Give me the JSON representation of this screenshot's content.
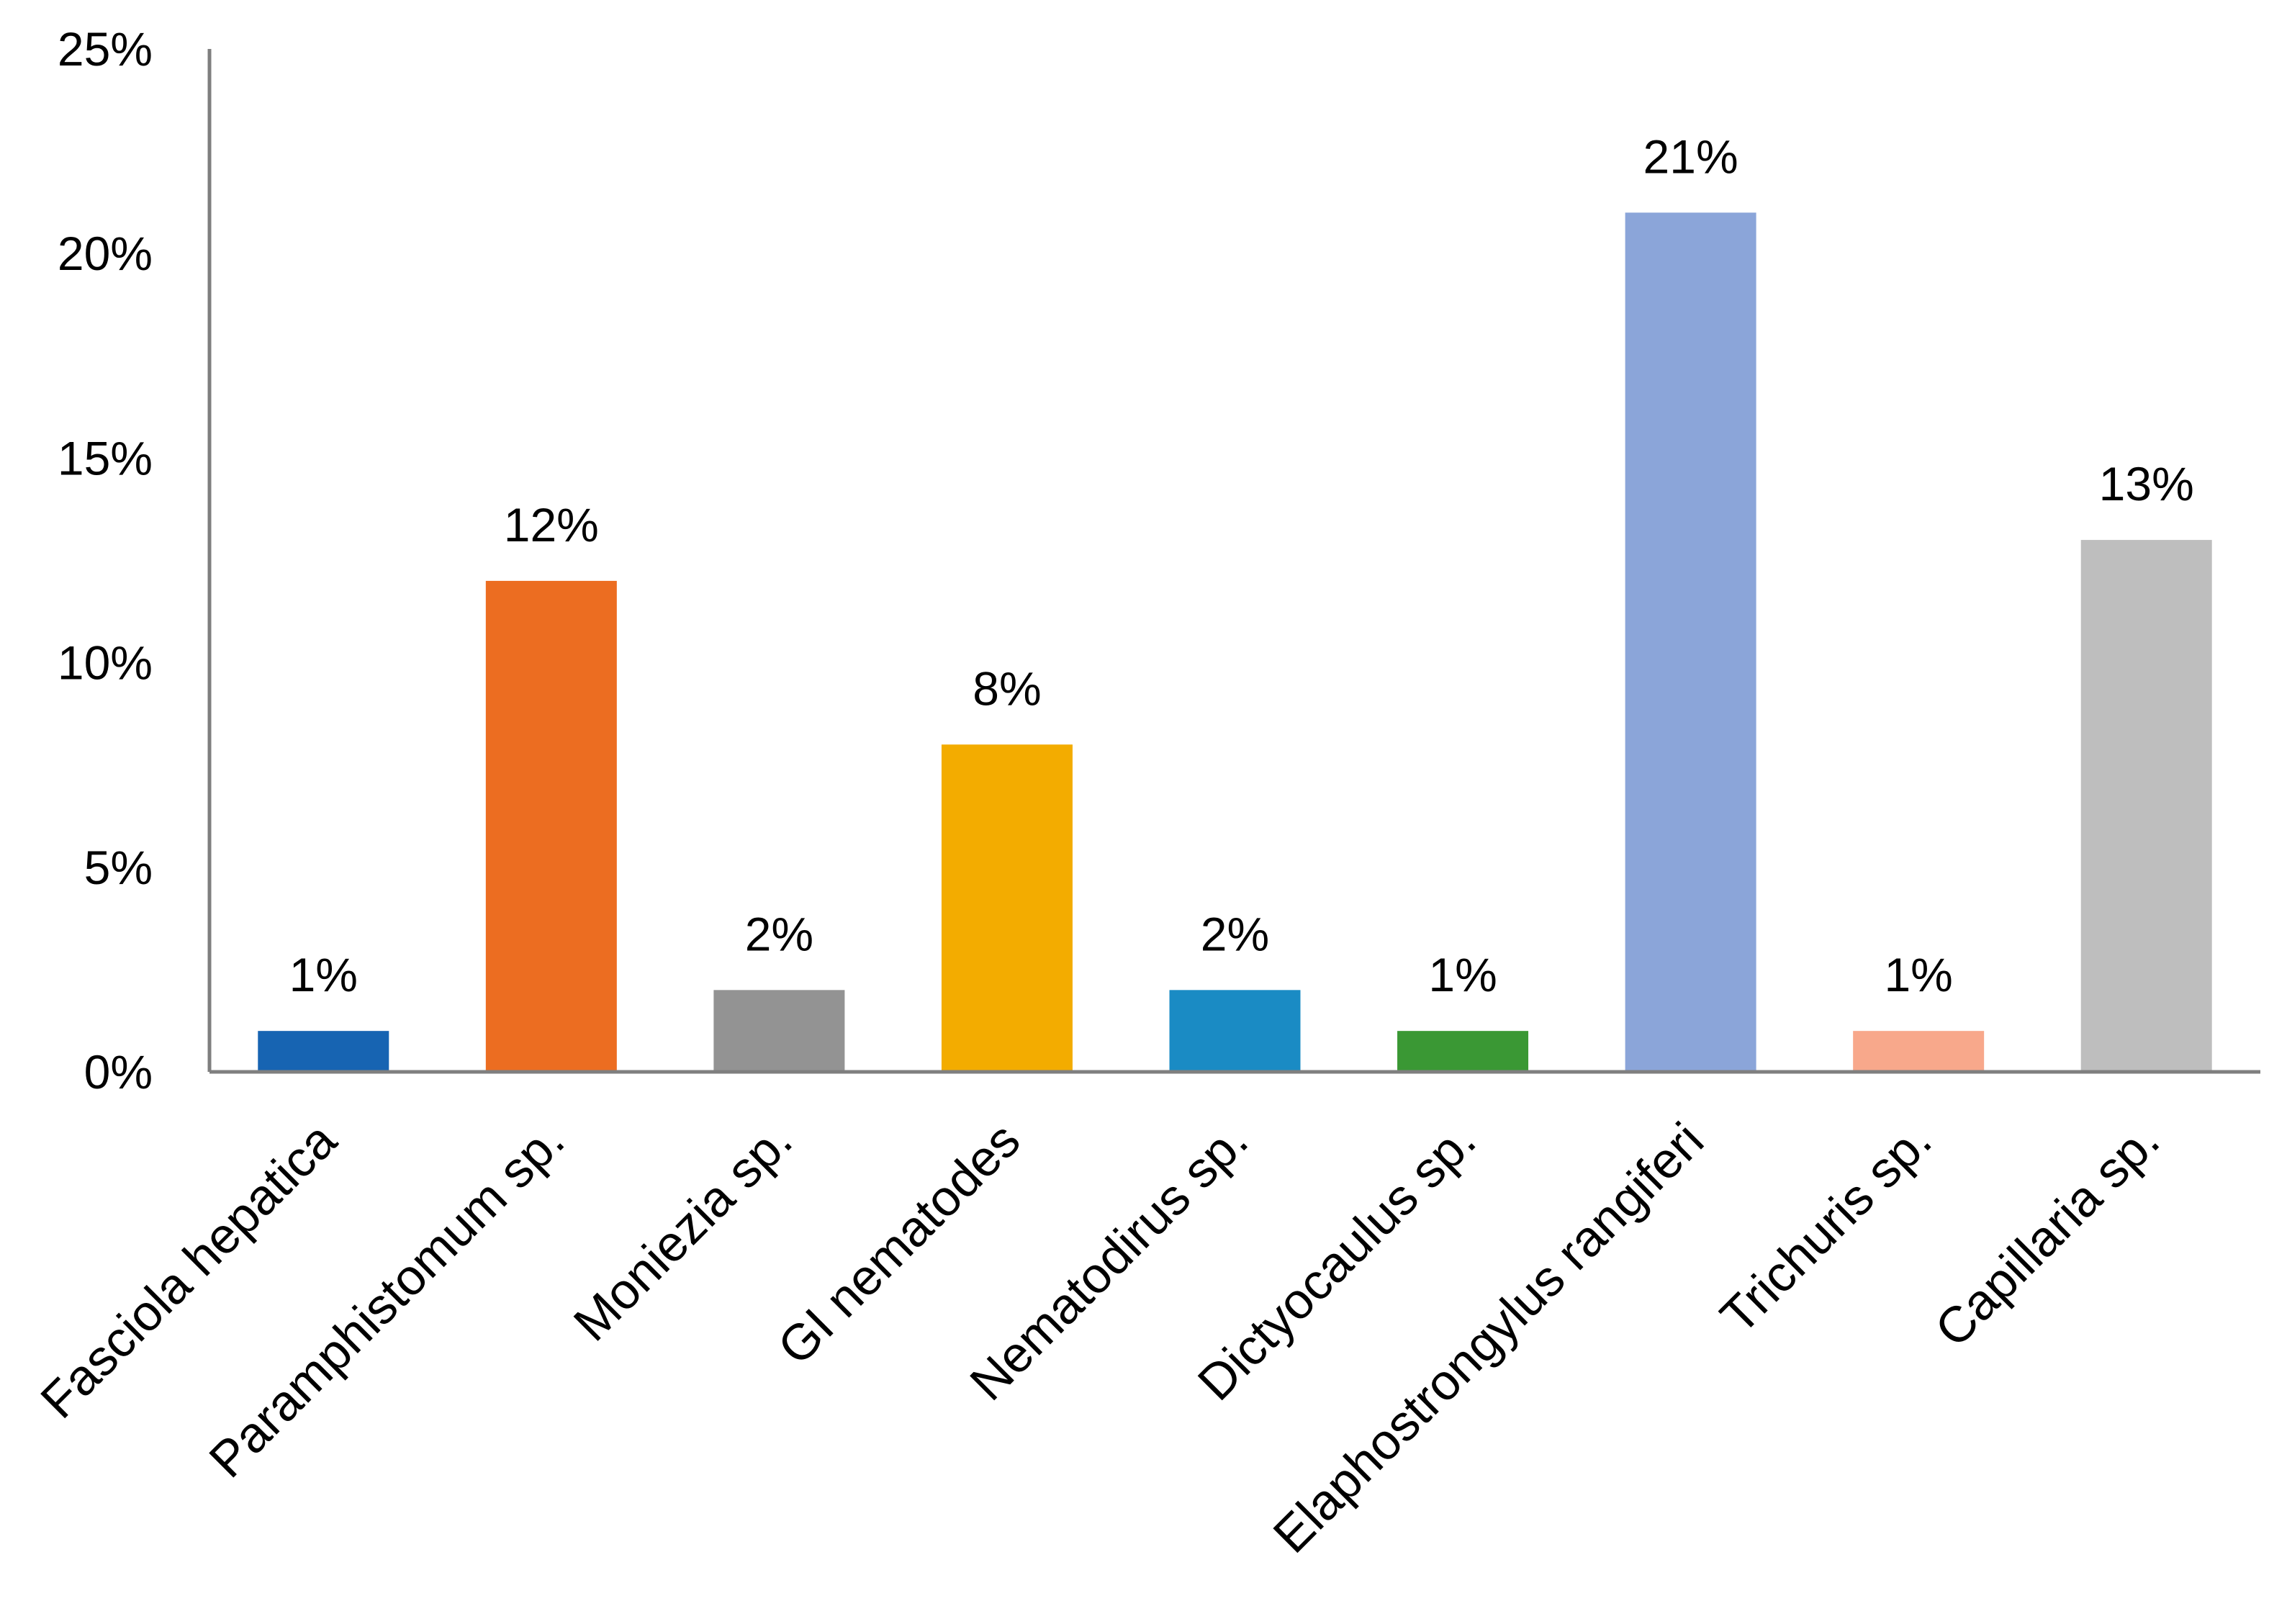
{
  "chart_data": {
    "type": "bar",
    "title": "",
    "xlabel": "",
    "ylabel": "",
    "ylim": [
      0,
      25
    ],
    "yticks": [
      0,
      5,
      10,
      15,
      20,
      25
    ],
    "ytick_labels": [
      "0%",
      "5%",
      "10%",
      "15%",
      "20%",
      "25%"
    ],
    "grid": false,
    "legend": "none",
    "categories": [
      "Fasciola hepatica",
      "Paramphistomum sp.",
      "Moniezia sp.",
      "GI nematodes",
      "Nematodirus sp.",
      "Dictyocaulus sp.",
      "Elaphostrongylus rangiferi",
      "Trichuris sp.",
      "Capillaria sp."
    ],
    "values": [
      1,
      12,
      2,
      8,
      2,
      1,
      21,
      1,
      13
    ],
    "data_labels": [
      "1%",
      "12%",
      "2%",
      "8%",
      "2%",
      "1%",
      "21%",
      "1%",
      "13%"
    ],
    "colors": [
      "#1764b2",
      "#ec6d21",
      "#939393",
      "#f3ac00",
      "#1a8bc4",
      "#3a9834",
      "#8ba5d9",
      "#f8a88b",
      "#bebebe"
    ],
    "axis_color": "#7f7f7f"
  }
}
